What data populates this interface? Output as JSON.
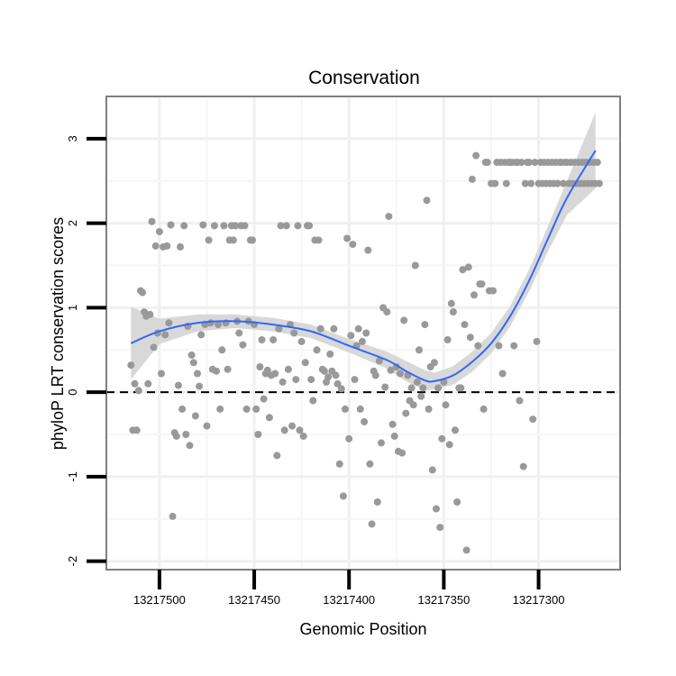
{
  "chart_data": {
    "type": "scatter",
    "title": "Conservation",
    "xlabel": "Genomic Position",
    "ylabel": "phyloP LRT conservation scores",
    "xlim": [
      13217528,
      13217257
    ],
    "ylim": [
      -2.1,
      3.5
    ],
    "x_reversed": true,
    "xticks": [
      13217500,
      13217450,
      13217400,
      13217350,
      13217300
    ],
    "xtick_labels": [
      "13217500",
      "13217450",
      "13217400",
      "13217350",
      "13217300"
    ],
    "yticks": [
      -2,
      -1,
      0,
      1,
      2,
      3
    ],
    "ytick_labels": [
      "-2",
      "-1",
      "0",
      "1",
      "2",
      "3"
    ],
    "reference_line": {
      "y": 0,
      "style": "dashed",
      "color": "#000000"
    },
    "point_color": "#999999",
    "smooth_color": "#3366FF",
    "ribbon_color": "#D6D6D6",
    "points": [
      [
        13217515,
        0.32
      ],
      [
        13217514,
        -0.45
      ],
      [
        13217513,
        0.1
      ],
      [
        13217512,
        -0.45
      ],
      [
        13217511,
        0.02
      ],
      [
        13217510,
        1.2
      ],
      [
        13217509,
        1.18
      ],
      [
        13217508,
        0.95
      ],
      [
        13217507,
        0.9
      ],
      [
        13217506,
        0.1
      ],
      [
        13217505,
        0.92
      ],
      [
        13217504,
        2.02
      ],
      [
        13217503,
        0.53
      ],
      [
        13217502,
        1.73
      ],
      [
        13217501,
        0.7
      ],
      [
        13217500,
        1.9
      ],
      [
        13217499,
        0.22
      ],
      [
        13217498,
        1.72
      ],
      [
        13217497,
        0.68
      ],
      [
        13217496,
        1.73
      ],
      [
        13217495,
        0.82
      ],
      [
        13217494,
        1.98
      ],
      [
        13217493,
        -1.47
      ],
      [
        13217492,
        -0.48
      ],
      [
        13217491,
        -0.52
      ],
      [
        13217490,
        0.08
      ],
      [
        13217489,
        1.72
      ],
      [
        13217488,
        -0.2
      ],
      [
        13217487,
        1.97
      ],
      [
        13217486,
        -0.5
      ],
      [
        13217485,
        0.78
      ],
      [
        13217484,
        -0.63
      ],
      [
        13217483,
        0.44
      ],
      [
        13217482,
        0.35
      ],
      [
        13217481,
        -0.28
      ],
      [
        13217480,
        0.22
      ],
      [
        13217479,
        0.07
      ],
      [
        13217478,
        0.68
      ],
      [
        13217477,
        1.98
      ],
      [
        13217476,
        0.8
      ],
      [
        13217475,
        -0.4
      ],
      [
        13217474,
        1.8
      ],
      [
        13217473,
        0.82
      ],
      [
        13217472,
        0.27
      ],
      [
        13217471,
        1.97
      ],
      [
        13217470,
        0.25
      ],
      [
        13217469,
        0.8
      ],
      [
        13217468,
        -0.2
      ],
      [
        13217467,
        0.5
      ],
      [
        13217466,
        1.97
      ],
      [
        13217465,
        0.82
      ],
      [
        13217464,
        0.27
      ],
      [
        13217463,
        1.8
      ],
      [
        13217462,
        1.97
      ],
      [
        13217461,
        1.8
      ],
      [
        13217460,
        1.97
      ],
      [
        13217459,
        0.84
      ],
      [
        13217458,
        0.7
      ],
      [
        13217457,
        1.97
      ],
      [
        13217456,
        0.56
      ],
      [
        13217455,
        1.97
      ],
      [
        13217454,
        -0.2
      ],
      [
        13217453,
        0.84
      ],
      [
        13217452,
        1.8
      ],
      [
        13217451,
        1.8
      ],
      [
        13217450,
        0.8
      ],
      [
        13217449,
        -0.2
      ],
      [
        13217448,
        -0.5
      ],
      [
        13217447,
        0.3
      ],
      [
        13217446,
        0.62
      ],
      [
        13217445,
        -0.08
      ],
      [
        13217444,
        0.22
      ],
      [
        13217443,
        0.26
      ],
      [
        13217442,
        -0.3
      ],
      [
        13217441,
        0.2
      ],
      [
        13217440,
        0.62
      ],
      [
        13217439,
        0.22
      ],
      [
        13217438,
        -0.75
      ],
      [
        13217437,
        0.75
      ],
      [
        13217436,
        1.97
      ],
      [
        13217435,
        0.12
      ],
      [
        13217434,
        -0.45
      ],
      [
        13217433,
        1.97
      ],
      [
        13217432,
        0.27
      ],
      [
        13217431,
        0.8
      ],
      [
        13217430,
        -0.4
      ],
      [
        13217429,
        0.7
      ],
      [
        13217428,
        0.15
      ],
      [
        13217427,
        1.97
      ],
      [
        13217426,
        -0.45
      ],
      [
        13217425,
        0.6
      ],
      [
        13217424,
        -0.52
      ],
      [
        13217423,
        0.35
      ],
      [
        13217422,
        1.97
      ],
      [
        13217421,
        1.97
      ],
      [
        13217420,
        0.15
      ],
      [
        13217419,
        -0.1
      ],
      [
        13217418,
        1.8
      ],
      [
        13217417,
        0.5
      ],
      [
        13217416,
        1.8
      ],
      [
        13217415,
        0.75
      ],
      [
        13217414,
        0.27
      ],
      [
        13217413,
        0.25
      ],
      [
        13217412,
        0.12
      ],
      [
        13217411,
        0.18
      ],
      [
        13217410,
        0.45
      ],
      [
        13217409,
        0.25
      ],
      [
        13217408,
        0.75
      ],
      [
        13217407,
        0.2
      ],
      [
        13217406,
        0.1
      ],
      [
        13217405,
        -0.85
      ],
      [
        13217404,
        0.04
      ],
      [
        13217403,
        -1.23
      ],
      [
        13217402,
        -0.2
      ],
      [
        13217401,
        1.82
      ],
      [
        13217400,
        -0.55
      ],
      [
        13217399,
        0.67
      ],
      [
        13217398,
        1.75
      ],
      [
        13217397,
        0.15
      ],
      [
        13217396,
        0.55
      ],
      [
        13217395,
        0.75
      ],
      [
        13217394,
        -0.2
      ],
      [
        13217393,
        0.6
      ],
      [
        13217392,
        -0.35
      ],
      [
        13217391,
        0.7
      ],
      [
        13217390,
        1.68
      ],
      [
        13217389,
        -0.85
      ],
      [
        13217388,
        -1.56
      ],
      [
        13217387,
        0.25
      ],
      [
        13217386,
        0.2
      ],
      [
        13217385,
        -1.3
      ],
      [
        13217384,
        0.37
      ],
      [
        13217383,
        -0.6
      ],
      [
        13217382,
        1.0
      ],
      [
        13217381,
        0.06
      ],
      [
        13217380,
        0.95
      ],
      [
        13217379,
        2.08
      ],
      [
        13217378,
        0.26
      ],
      [
        13217377,
        -0.38
      ],
      [
        13217376,
        -0.52
      ],
      [
        13217375,
        0.3
      ],
      [
        13217374,
        -0.7
      ],
      [
        13217373,
        0.22
      ],
      [
        13217372,
        -0.72
      ],
      [
        13217371,
        0.85
      ],
      [
        13217370,
        -0.25
      ],
      [
        13217369,
        0.2
      ],
      [
        13217368,
        -0.1
      ],
      [
        13217367,
        0.05
      ],
      [
        13217366,
        -0.15
      ],
      [
        13217365,
        1.5
      ],
      [
        13217364,
        0.12
      ],
      [
        13217363,
        0.5
      ],
      [
        13217362,
        -0.05
      ],
      [
        13217361,
        0.05
      ],
      [
        13217360,
        0.8
      ],
      [
        13217359,
        2.27
      ],
      [
        13217358,
        -0.2
      ],
      [
        13217357,
        0.3
      ],
      [
        13217356,
        -0.92
      ],
      [
        13217355,
        0.35
      ],
      [
        13217354,
        -1.38
      ],
      [
        13217353,
        0.05
      ],
      [
        13217352,
        -1.6
      ],
      [
        13217351,
        -0.55
      ],
      [
        13217350,
        0.12
      ],
      [
        13217349,
        -0.15
      ],
      [
        13217348,
        0.62
      ],
      [
        13217347,
        -0.62
      ],
      [
        13217346,
        1.05
      ],
      [
        13217345,
        0.95
      ],
      [
        13217344,
        -0.45
      ],
      [
        13217343,
        -1.3
      ],
      [
        13217342,
        0.05
      ],
      [
        13217341,
        0.05
      ],
      [
        13217340,
        1.45
      ],
      [
        13217339,
        0.8
      ],
      [
        13217338,
        -1.87
      ],
      [
        13217337,
        1.48
      ],
      [
        13217336,
        0.65
      ],
      [
        13217335,
        2.52
      ],
      [
        13217334,
        1.15
      ],
      [
        13217333,
        2.8
      ],
      [
        13217332,
        0.55
      ],
      [
        13217331,
        1.28
      ],
      [
        13217330,
        1.28
      ],
      [
        13217329,
        -0.2
      ],
      [
        13217328,
        2.72
      ],
      [
        13217327,
        2.72
      ],
      [
        13217326,
        1.2
      ],
      [
        13217325,
        2.47
      ],
      [
        13217324,
        1.2
      ],
      [
        13217323,
        2.47
      ],
      [
        13217322,
        2.72
      ],
      [
        13217321,
        0.55
      ],
      [
        13217320,
        2.72
      ],
      [
        13217319,
        0.22
      ],
      [
        13217318,
        2.72
      ],
      [
        13217317,
        2.47
      ],
      [
        13217316,
        2.72
      ],
      [
        13217315,
        2.72
      ],
      [
        13217314,
        2.72
      ],
      [
        13217313,
        0.55
      ],
      [
        13217312,
        2.72
      ],
      [
        13217311,
        2.72
      ],
      [
        13217310,
        -0.1
      ],
      [
        13217309,
        2.72
      ],
      [
        13217308,
        -0.88
      ],
      [
        13217307,
        2.47
      ],
      [
        13217306,
        2.72
      ],
      [
        13217305,
        2.72
      ],
      [
        13217304,
        2.47
      ],
      [
        13217303,
        -0.32
      ],
      [
        13217302,
        2.72
      ],
      [
        13217301,
        0.6
      ],
      [
        13217300,
        2.47
      ],
      [
        13217299,
        2.72
      ],
      [
        13217298,
        2.47
      ],
      [
        13217297,
        2.72
      ],
      [
        13217296,
        2.47
      ],
      [
        13217295,
        2.72
      ],
      [
        13217294,
        2.47
      ],
      [
        13217293,
        2.72
      ],
      [
        13217292,
        2.47
      ],
      [
        13217291,
        2.72
      ],
      [
        13217290,
        2.47
      ],
      [
        13217289,
        2.72
      ],
      [
        13217288,
        2.72
      ],
      [
        13217287,
        2.47
      ],
      [
        13217286,
        2.72
      ],
      [
        13217285,
        2.72
      ],
      [
        13217284,
        2.47
      ],
      [
        13217283,
        2.72
      ],
      [
        13217282,
        2.47
      ],
      [
        13217281,
        2.72
      ],
      [
        13217280,
        2.47
      ],
      [
        13217279,
        2.72
      ],
      [
        13217278,
        2.47
      ],
      [
        13217277,
        2.72
      ],
      [
        13217276,
        2.47
      ],
      [
        13217275,
        2.72
      ],
      [
        13217274,
        2.47
      ],
      [
        13217273,
        2.72
      ],
      [
        13217272,
        2.47
      ],
      [
        13217271,
        2.72
      ],
      [
        13217270,
        2.47
      ],
      [
        13217269,
        2.72
      ],
      [
        13217268,
        2.47
      ]
    ],
    "smooth": [
      [
        13217515,
        0.58
      ],
      [
        13217500,
        0.72
      ],
      [
        13217480,
        0.82
      ],
      [
        13217460,
        0.84
      ],
      [
        13217440,
        0.8
      ],
      [
        13217420,
        0.72
      ],
      [
        13217400,
        0.55
      ],
      [
        13217380,
        0.38
      ],
      [
        13217370,
        0.25
      ],
      [
        13217360,
        0.14
      ],
      [
        13217355,
        0.13
      ],
      [
        13217345,
        0.2
      ],
      [
        13217335,
        0.36
      ],
      [
        13217325,
        0.58
      ],
      [
        13217315,
        0.9
      ],
      [
        13217305,
        1.32
      ],
      [
        13217295,
        1.82
      ],
      [
        13217285,
        2.3
      ],
      [
        13217270,
        2.86
      ]
    ],
    "ribbon_halfwidth": [
      0.43,
      0.15,
      0.1,
      0.08,
      0.08,
      0.08,
      0.08,
      0.1,
      0.12,
      0.12,
      0.1,
      0.11,
      0.12,
      0.12,
      0.12,
      0.13,
      0.15,
      0.2,
      0.45
    ]
  }
}
